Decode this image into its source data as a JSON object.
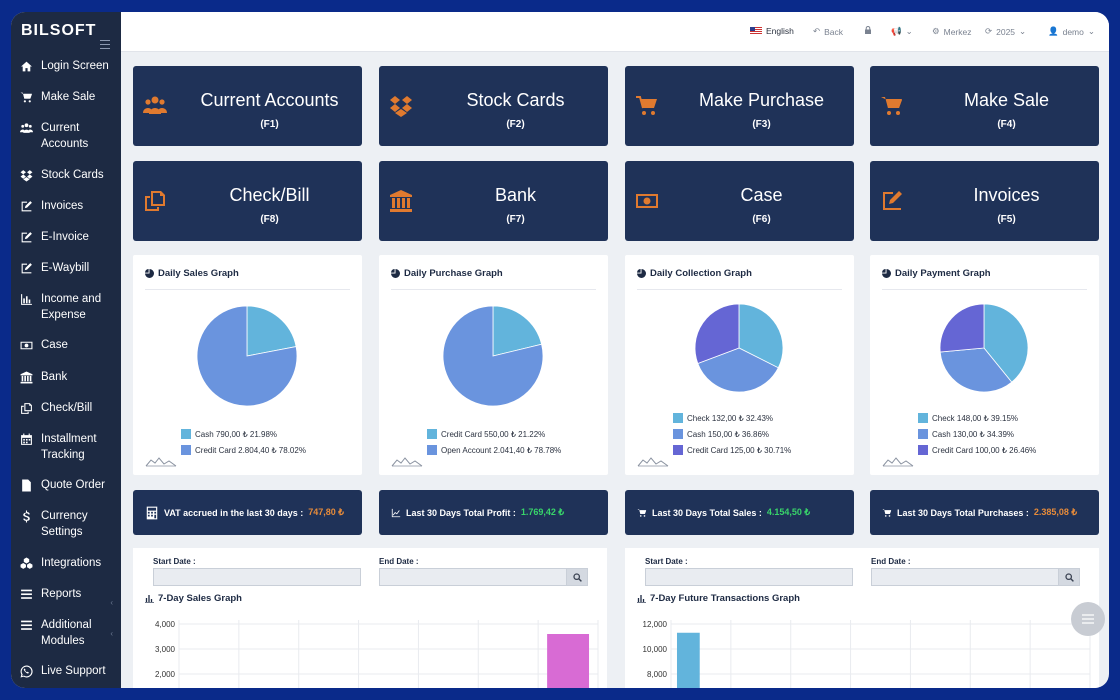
{
  "brand": "BILSOFT",
  "sidebar": {
    "items": [
      {
        "label": "Login Screen",
        "icon": "home-icon"
      },
      {
        "label": "Make Sale",
        "icon": "cart-icon"
      },
      {
        "label": "Current Accounts",
        "icon": "users-icon"
      },
      {
        "label": "Stock Cards",
        "icon": "dropbox-icon"
      },
      {
        "label": "Invoices",
        "icon": "edit-icon"
      },
      {
        "label": "E-Invoice",
        "icon": "edit-icon"
      },
      {
        "label": "E-Waybill",
        "icon": "edit-icon"
      },
      {
        "label": "Income and Expense",
        "icon": "bar-chart-icon"
      },
      {
        "label": "Case",
        "icon": "money-icon"
      },
      {
        "label": "Bank",
        "icon": "bank-icon"
      },
      {
        "label": "Check/Bill",
        "icon": "copy-icon"
      },
      {
        "label": "Installment Tracking",
        "icon": "calendar-icon"
      },
      {
        "label": "Quote Order",
        "icon": "file-icon"
      },
      {
        "label": "Currency Settings",
        "icon": "dollar-icon"
      },
      {
        "label": "Integrations",
        "icon": "cubes-icon"
      },
      {
        "label": "Reports",
        "icon": "list-icon"
      },
      {
        "label": "Additional Modules",
        "icon": "list-icon"
      },
      {
        "label": "Live Support",
        "icon": "whatsapp-icon"
      }
    ]
  },
  "topbar": {
    "language": "English",
    "back": "Back",
    "branch": "Merkez",
    "year": "2025",
    "user": "demo"
  },
  "shortcuts": [
    {
      "title": "Current Accounts",
      "key": "(F1)",
      "icon": "users-icon"
    },
    {
      "title": "Stock Cards",
      "key": "(F2)",
      "icon": "dropbox-icon"
    },
    {
      "title": "Make Purchase",
      "key": "(F3)",
      "icon": "cart-download-icon"
    },
    {
      "title": "Make Sale",
      "key": "(F4)",
      "icon": "cart-icon"
    },
    {
      "title": "Check/Bill",
      "key": "(F8)",
      "icon": "copy-icon"
    },
    {
      "title": "Bank",
      "key": "(F7)",
      "icon": "bank-icon"
    },
    {
      "title": "Case",
      "key": "(F6)",
      "icon": "money-icon"
    },
    {
      "title": "Invoices",
      "key": "(F5)",
      "icon": "edit-icon"
    }
  ],
  "pie_panels": [
    {
      "title": "Daily Sales Graph",
      "legend": [
        "Cash 790,00 ₺ 21.98%",
        "Credit Card 2.804,40 ₺ 78.02%"
      ]
    },
    {
      "title": "Daily Purchase Graph",
      "legend": [
        "Credit Card 550,00 ₺ 21.22%",
        "Open Account 2.041,40 ₺ 78.78%"
      ]
    },
    {
      "title": "Daily Collection Graph",
      "legend": [
        "Check 132,00 ₺ 32.43%",
        "Cash 150,00 ₺ 36.86%",
        "Credit Card 125,00 ₺ 30.71%"
      ]
    },
    {
      "title": "Daily Payment Graph",
      "legend": [
        "Check 148,00 ₺ 39.15%",
        "Cash 130,00 ₺ 34.39%",
        "Credit Card 100,00 ₺ 26.46%"
      ]
    }
  ],
  "colors": {
    "light_blue": "#62b4dc",
    "mid_blue": "#6a94de",
    "purple": "#6566d4",
    "accent_orange": "#e07a2f",
    "green": "#38d46a",
    "magenta": "#d86bd4"
  },
  "stats": [
    {
      "label": "VAT accrued in the last 30 days :",
      "value": "747,80 ₺",
      "icon": "calculator-icon"
    },
    {
      "label": "Last 30 Days Total Profit :",
      "value": "1.769,42 ₺",
      "icon": "line-chart-icon"
    },
    {
      "label": "Last 30 Days Total Sales :",
      "value": "4.154,50 ₺",
      "icon": "cart-icon"
    },
    {
      "label": "Last 30 Days Total Purchases :",
      "value": "2.385,08 ₺",
      "icon": "cart-icon"
    }
  ],
  "filters": {
    "start_label": "Start Date :",
    "end_label": "End Date :"
  },
  "chart_data": [
    {
      "type": "pie",
      "title": "Daily Sales Graph",
      "labels": [
        "Cash",
        "Credit Card"
      ],
      "values": [
        790.0,
        2804.4
      ],
      "colors": [
        "#62b4dc",
        "#6a94de"
      ]
    },
    {
      "type": "pie",
      "title": "Daily Purchase Graph",
      "labels": [
        "Credit Card",
        "Open Account"
      ],
      "values": [
        550.0,
        2041.4
      ],
      "colors": [
        "#62b4dc",
        "#6a94de"
      ]
    },
    {
      "type": "pie",
      "title": "Daily Collection Graph",
      "labels": [
        "Check",
        "Cash",
        "Credit Card"
      ],
      "values": [
        132.0,
        150.0,
        125.0
      ],
      "colors": [
        "#62b4dc",
        "#6a94de",
        "#6566d4"
      ]
    },
    {
      "type": "pie",
      "title": "Daily Payment Graph",
      "labels": [
        "Check",
        "Cash",
        "Credit Card"
      ],
      "values": [
        148.0,
        130.0,
        100.0
      ],
      "colors": [
        "#62b4dc",
        "#6a94de",
        "#6566d4"
      ]
    },
    {
      "type": "bar",
      "title": "7-Day Sales Graph",
      "yticks": [
        "4,000",
        "3,000",
        "2,000"
      ],
      "ylim": [
        0,
        4000
      ],
      "values": [
        0,
        0,
        0,
        0,
        0,
        0,
        3600
      ],
      "colors": [
        "#d86bd4"
      ]
    },
    {
      "type": "bar",
      "title": "7-Day Future Transactions Graph",
      "yticks": [
        "12,000",
        "10,000",
        "8,000"
      ],
      "ylim": [
        0,
        12000
      ],
      "values": [
        11300,
        0,
        0,
        0,
        0,
        0
      ],
      "colors": [
        "#62b4dc"
      ]
    }
  ]
}
